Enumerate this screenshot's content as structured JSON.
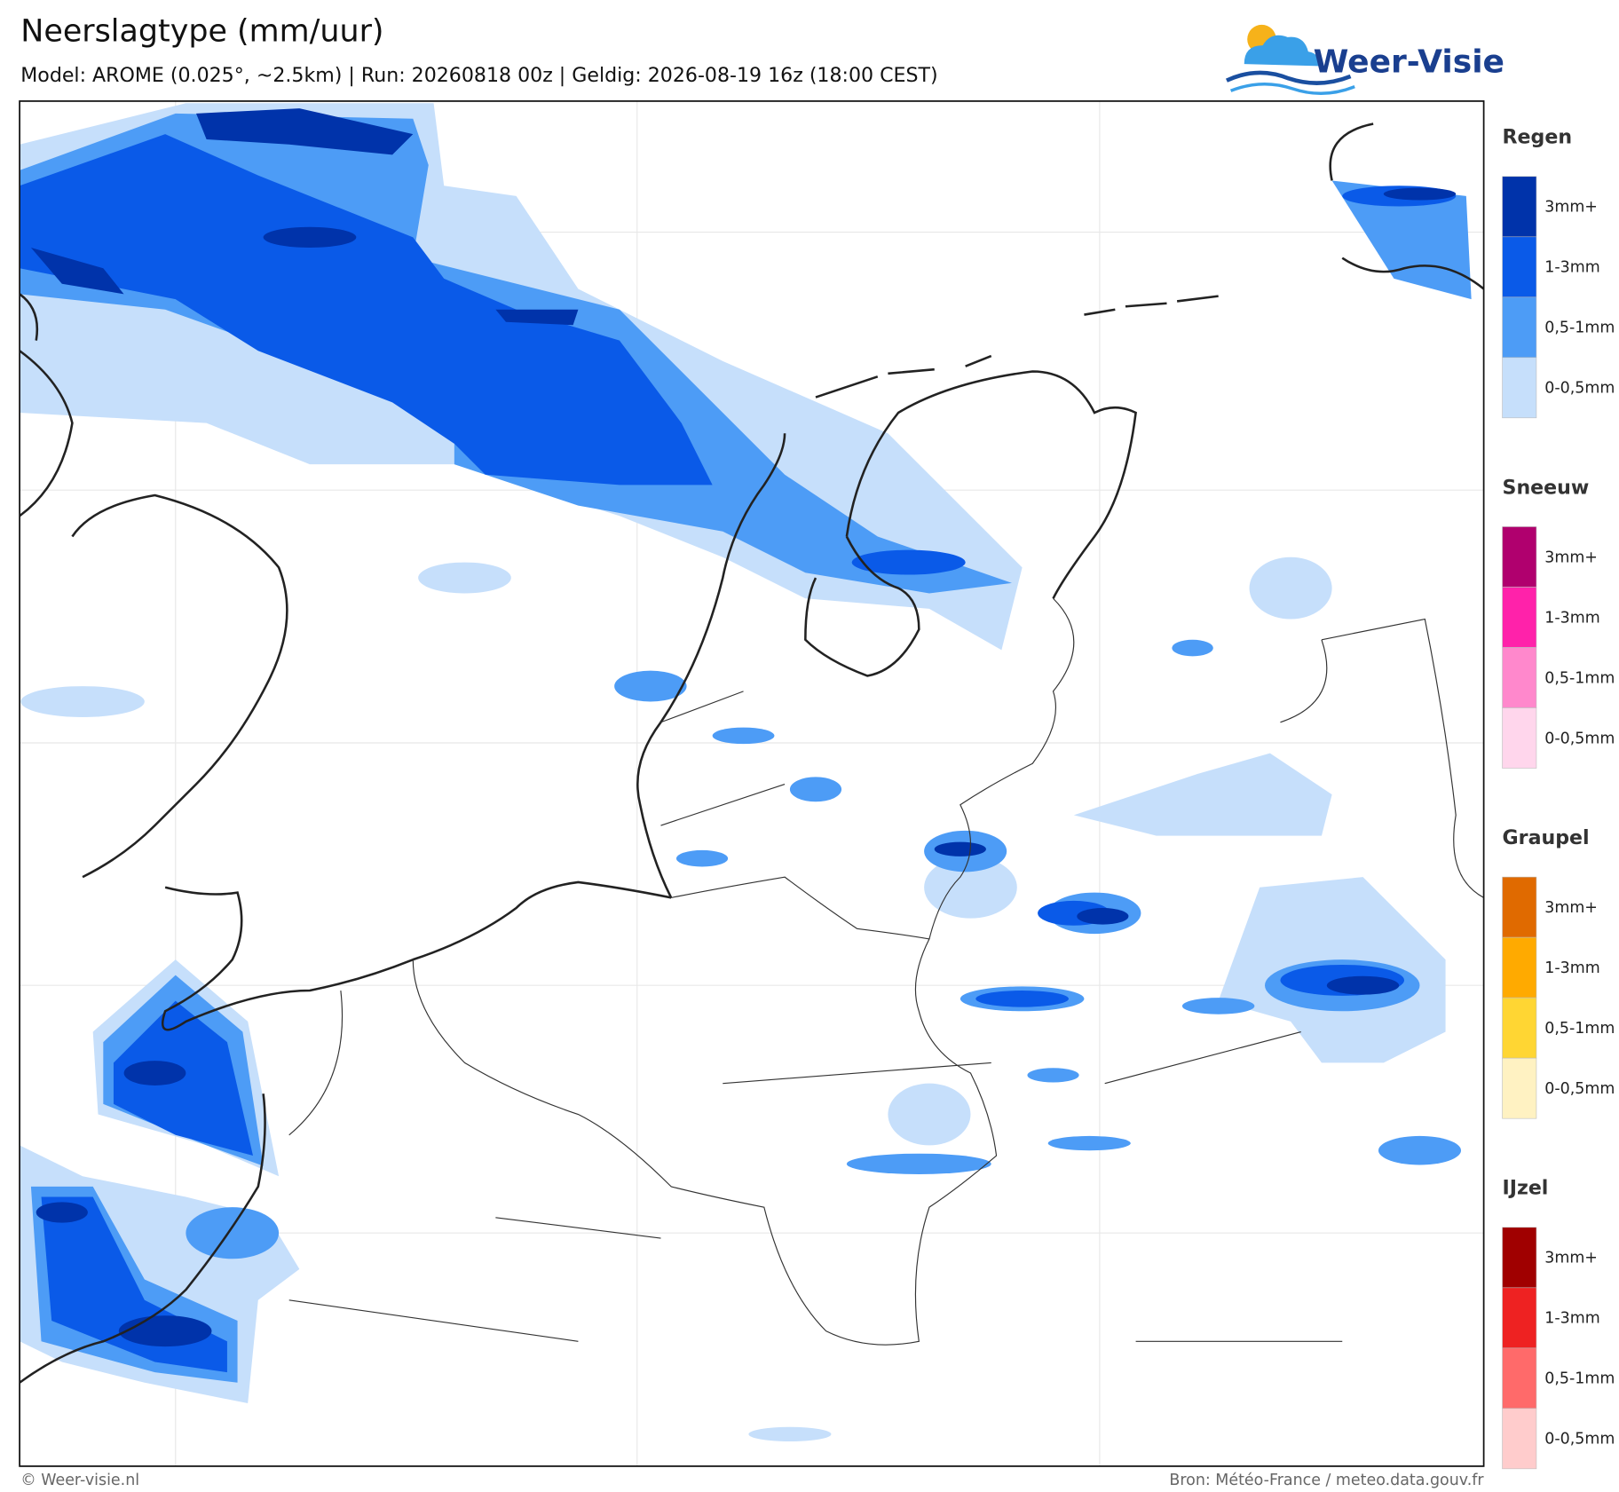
{
  "header": {
    "title": "Neerslagtype (mm/uur)",
    "subtitle": "Model: AROME (0.025°, ~2.5km)  |  Run: 20260818 00z  |  Geldig: 2026-08-19 16z (18:00 CEST)"
  },
  "logo": {
    "text": "Weer-Visie"
  },
  "legend": [
    {
      "title": "Regen",
      "items": [
        {
          "label": "3mm+",
          "color": "#0033aa"
        },
        {
          "label": "1-3mm",
          "color": "#0a5ae8"
        },
        {
          "label": "0,5-1mm",
          "color": "#4d9cf6"
        },
        {
          "label": "0-0,5mm",
          "color": "#c6dffb"
        }
      ]
    },
    {
      "title": "Sneeuw",
      "items": [
        {
          "label": "3mm+",
          "color": "#b0006e"
        },
        {
          "label": "1-3mm",
          "color": "#ff22aa"
        },
        {
          "label": "0,5-1mm",
          "color": "#ff88cc"
        },
        {
          "label": "0-0,5mm",
          "color": "#ffd6ec"
        }
      ]
    },
    {
      "title": "Graupel",
      "items": [
        {
          "label": "3mm+",
          "color": "#e06a00"
        },
        {
          "label": "1-3mm",
          "color": "#ffaa00"
        },
        {
          "label": "0,5-1mm",
          "color": "#ffd633"
        },
        {
          "label": "0-0,5mm",
          "color": "#fff2c2"
        }
      ]
    },
    {
      "title": "IJzel",
      "items": [
        {
          "label": "3mm+",
          "color": "#a00000"
        },
        {
          "label": "1-3mm",
          "color": "#ee2222"
        },
        {
          "label": "0,5-1mm",
          "color": "#ff6a6a"
        },
        {
          "label": "0-0,5mm",
          "color": "#ffcccc"
        }
      ]
    }
  ],
  "footer": {
    "left": "© Weer-visie.nl",
    "right": "Bron: Météo-France / meteo.data.gouv.fr"
  }
}
